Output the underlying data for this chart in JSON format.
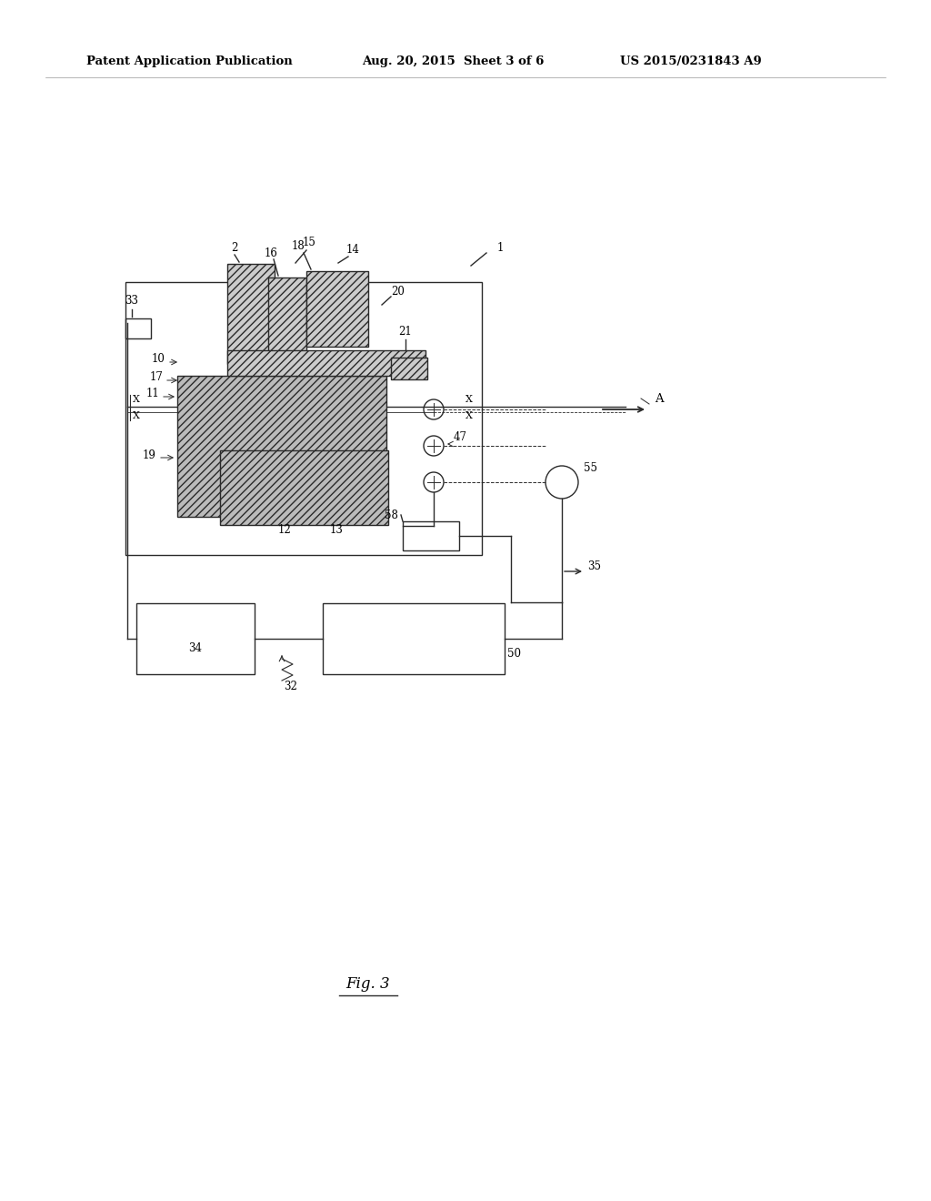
{
  "bg_color": "#ffffff",
  "header_left": "Patent Application Publication",
  "header_mid": "Aug. 20, 2015  Sheet 3 of 6",
  "header_right": "US 2015/0231843 A9",
  "fig_label": "Fig. 3",
  "line_color": "#2a2a2a",
  "hatch_fill": "#cccccc",
  "hatch_fill2": "#bbbbbb"
}
